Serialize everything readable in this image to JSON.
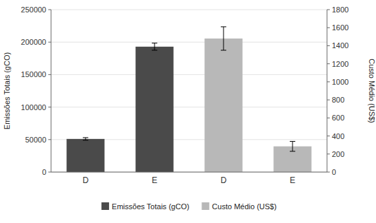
{
  "chart_data": {
    "type": "bar",
    "categories": [
      "D",
      "E",
      "D",
      "E"
    ],
    "series": [
      {
        "name": "Emissões Totais (gCO)",
        "color": "#4a4a4a",
        "values": [
          51000,
          193000,
          null,
          null
        ],
        "errors": [
          2000,
          5500,
          null,
          null
        ]
      },
      {
        "name": "Custo Médio (US$)",
        "color": "#b8b8b8",
        "axis": "y2",
        "values": [
          null,
          null,
          1480,
          285
        ],
        "errors": [
          null,
          null,
          130,
          55
        ]
      }
    ],
    "ylabel": "Emissões Totais (gCO)",
    "y2label": "Custo Médio (US$)",
    "ylim": [
      0,
      250000
    ],
    "yticks": [
      0,
      50000,
      100000,
      150000,
      200000,
      250000
    ],
    "y2lim": [
      0,
      1800
    ],
    "y2ticks": [
      0,
      200,
      400,
      600,
      800,
      1000,
      1200,
      1400,
      1600,
      1800
    ],
    "grid": true,
    "legend": "bottom"
  }
}
